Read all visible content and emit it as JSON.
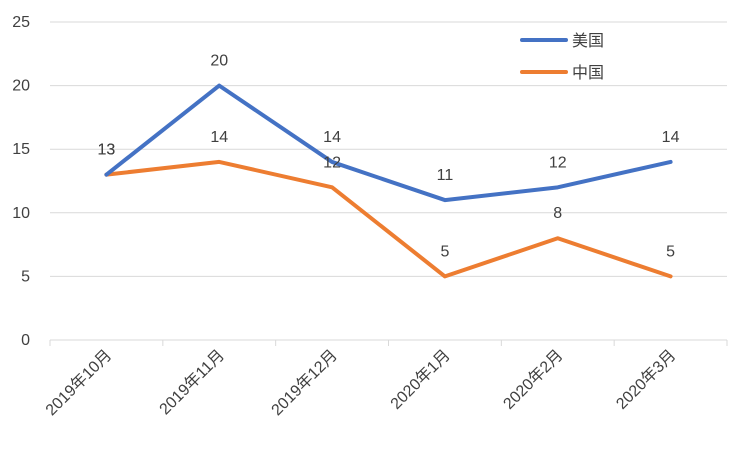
{
  "chart_data": {
    "type": "line",
    "title": "",
    "xlabel": "",
    "ylabel": "",
    "categories": [
      "2019年10月",
      "2019年11月",
      "2019年12月",
      "2020年1月",
      "2020年2月",
      "2020年3月"
    ],
    "ylim": [
      0,
      25
    ],
    "yticks": [
      "0",
      "5",
      "10",
      "15",
      "20",
      "25"
    ],
    "grid": true,
    "legend_position": "top-right",
    "series": [
      {
        "name": "美国",
        "color": "#4472C4",
        "values": [
          13,
          20,
          14,
          11,
          12,
          14
        ]
      },
      {
        "name": "中国",
        "color": "#ED7D31",
        "values": [
          13,
          14,
          12,
          5,
          8,
          5
        ]
      }
    ]
  }
}
